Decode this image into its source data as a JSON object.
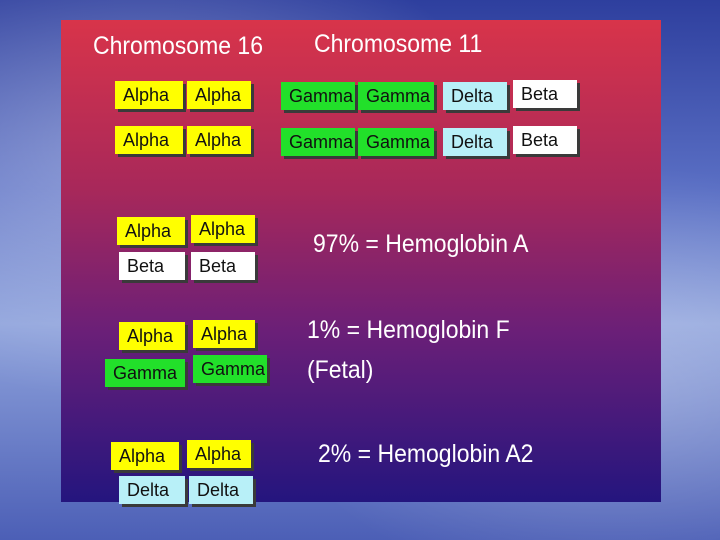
{
  "headers": {
    "chr16": "Chromosome 16",
    "chr11": "Chromosome 11"
  },
  "chr16_rows": [
    [
      "Alpha",
      "Alpha"
    ],
    [
      "Alpha",
      "Alpha"
    ]
  ],
  "chr11_rows": [
    [
      "Gamma",
      "Gamma",
      "Delta",
      "Beta"
    ],
    [
      "Gamma",
      "Gamma",
      "Delta",
      "Beta"
    ]
  ],
  "hemoglobins": [
    {
      "boxes": [
        [
          "Alpha",
          "Alpha"
        ],
        [
          "Beta",
          "Beta"
        ]
      ],
      "label": "97% = Hemoglobin A",
      "sublabel": ""
    },
    {
      "boxes": [
        [
          "Alpha",
          "Alpha"
        ],
        [
          "Gamma",
          "Gamma"
        ]
      ],
      "label": "1% = Hemoglobin F",
      "sublabel": "(Fetal)"
    },
    {
      "boxes": [
        [
          "Alpha",
          "Alpha"
        ],
        [
          "Delta",
          "Delta"
        ]
      ],
      "label": "2% = Hemoglobin A2",
      "sublabel": ""
    }
  ],
  "colors": {
    "alpha": "#ffff00",
    "gamma": "#22e02a",
    "delta": "#b8f0f8",
    "beta": "#ffffff",
    "slide_top": "#d8344a",
    "slide_bottom": "#24157e"
  }
}
